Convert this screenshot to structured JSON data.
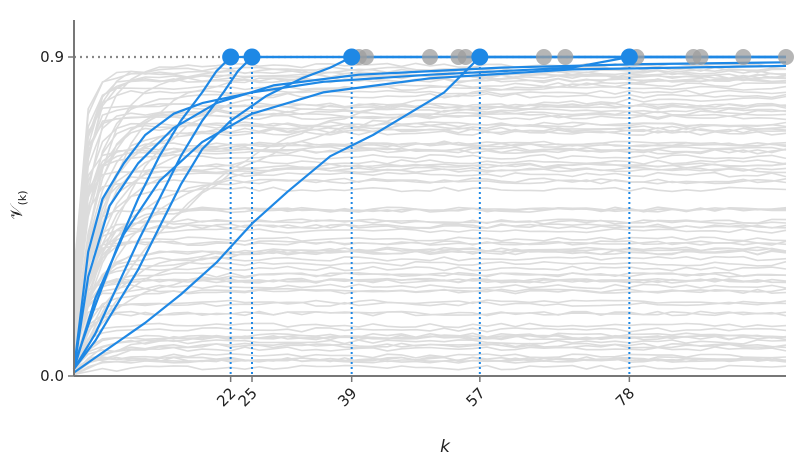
{
  "chart_data": {
    "type": "line",
    "title": "",
    "xlabel": "k",
    "ylabel": "𝒱",
    "ylabel_subscript": "(k)",
    "xlim": [
      0,
      100
    ],
    "ylim": [
      0,
      0.9
    ],
    "yticks": [
      0.0,
      0.9
    ],
    "ytick_labels": [
      "0.0",
      "0.9"
    ],
    "xticks": [
      22,
      25,
      39,
      57,
      78
    ],
    "xtick_labels": [
      "22",
      "25",
      "39",
      "57",
      "78"
    ],
    "threshold": 0.9,
    "threshold_style": "dotted",
    "grid": false,
    "legend": "none",
    "colors": {
      "highlight": "#1e88e5",
      "background_lines": "#dcdcdc",
      "background_markers": "#9e9e9e",
      "threshold": "#888888",
      "axis": "#777777"
    },
    "series": [
      {
        "values": [
          [
            0,
            0.02
          ],
          [
            2,
            0.35
          ],
          [
            4,
            0.5
          ],
          [
            7,
            0.6
          ],
          [
            10,
            0.68
          ],
          [
            14,
            0.74
          ],
          [
            18,
            0.77
          ],
          [
            25,
            0.8
          ],
          [
            35,
            0.83
          ],
          [
            50,
            0.85
          ],
          [
            70,
            0.87
          ],
          [
            78,
            0.9
          ],
          [
            100,
            0.9
          ]
        ]
      },
      {
        "values": [
          [
            0,
            0.03
          ],
          [
            3,
            0.2
          ],
          [
            6,
            0.36
          ],
          [
            9,
            0.5
          ],
          [
            12,
            0.62
          ],
          [
            15,
            0.72
          ],
          [
            18,
            0.8
          ],
          [
            20,
            0.86
          ],
          [
            22,
            0.9
          ],
          [
            100,
            0.9
          ]
        ]
      },
      {
        "values": [
          [
            0,
            0.02
          ],
          [
            3,
            0.12
          ],
          [
            6,
            0.25
          ],
          [
            9,
            0.38
          ],
          [
            12,
            0.5
          ],
          [
            15,
            0.62
          ],
          [
            18,
            0.72
          ],
          [
            21,
            0.8
          ],
          [
            23,
            0.86
          ],
          [
            25,
            0.9
          ],
          [
            100,
            0.9
          ]
        ]
      },
      {
        "values": [
          [
            0,
            0.02
          ],
          [
            3,
            0.1
          ],
          [
            6,
            0.2
          ],
          [
            9,
            0.3
          ],
          [
            12,
            0.42
          ],
          [
            15,
            0.54
          ],
          [
            18,
            0.64
          ],
          [
            22,
            0.72
          ],
          [
            27,
            0.79
          ],
          [
            32,
            0.84
          ],
          [
            36,
            0.87
          ],
          [
            39,
            0.9
          ],
          [
            100,
            0.9
          ]
        ]
      },
      {
        "values": [
          [
            0,
            0.01
          ],
          [
            5,
            0.08
          ],
          [
            10,
            0.15
          ],
          [
            15,
            0.23
          ],
          [
            20,
            0.32
          ],
          [
            25,
            0.43
          ],
          [
            30,
            0.52
          ],
          [
            36,
            0.62
          ],
          [
            42,
            0.68
          ],
          [
            47,
            0.74
          ],
          [
            52,
            0.8
          ],
          [
            55,
            0.86
          ],
          [
            57,
            0.9
          ],
          [
            100,
            0.9
          ]
        ]
      },
      {
        "values": [
          [
            0,
            0.02
          ],
          [
            2,
            0.28
          ],
          [
            5,
            0.48
          ],
          [
            9,
            0.6
          ],
          [
            14,
            0.7
          ],
          [
            20,
            0.77
          ],
          [
            28,
            0.82
          ],
          [
            40,
            0.85
          ],
          [
            60,
            0.87
          ],
          [
            80,
            0.88
          ],
          [
            100,
            0.885
          ]
        ]
      },
      {
        "values": [
          [
            0,
            0.02
          ],
          [
            3,
            0.22
          ],
          [
            7,
            0.4
          ],
          [
            12,
            0.55
          ],
          [
            18,
            0.66
          ],
          [
            25,
            0.74
          ],
          [
            35,
            0.8
          ],
          [
            50,
            0.84
          ],
          [
            70,
            0.865
          ],
          [
            100,
            0.875
          ]
        ]
      }
    ],
    "highlight_markers_x": [
      22,
      25,
      39,
      57,
      78
    ],
    "background_markers_x": [
      40,
      41,
      50,
      54,
      55,
      66,
      69,
      79,
      87,
      88,
      94,
      100
    ]
  }
}
